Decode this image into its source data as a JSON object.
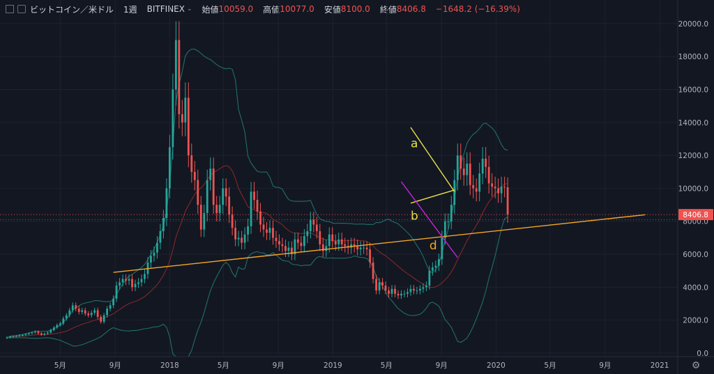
{
  "header": {
    "symbol": "ビットコイン／米ドル",
    "interval": "1週",
    "exchange": "BITFINEX",
    "open_label": "始値",
    "open_value": "10059.0",
    "high_label": "高値",
    "high_value": "10077.0",
    "low_label": "安値",
    "low_value": "8100.0",
    "close_label": "終値",
    "close_value": "8406.8",
    "change": "−1648.2 (−16.39%)"
  },
  "colors": {
    "background": "#131722",
    "up": "#26a69a",
    "down": "#ef5350",
    "bollinger_band": "#1f6f6a",
    "bollinger_mid": "#8b2a2a",
    "trendline_orange": "#f5a623",
    "trendline_yellow": "#e8e24a",
    "trendline_purple": "#c424d6"
  },
  "chart_data": {
    "type": "candlestick",
    "y_axis": {
      "range": [
        0,
        20500
      ],
      "ticks": [
        "0.0",
        "2000.0",
        "4000.0",
        "6000.0",
        "8000.0",
        "10000.0",
        "12000.0",
        "14000.0",
        "16000.0",
        "18000.0",
        "20000.0"
      ]
    },
    "x_axis": {
      "ticks": [
        "5月",
        "9月",
        "2018",
        "5月",
        "9月",
        "2019",
        "5月",
        "9月",
        "2020",
        "5月",
        "9月",
        "2021"
      ]
    },
    "last_price_label": "8406.8",
    "annotations": [
      "a",
      "b",
      "d"
    ],
    "series": [
      {
        "name": "BTCUSD",
        "values": [
          950,
          1000,
          1020,
          1040,
          1080,
          1100,
          1150,
          1200,
          1250,
          1300,
          1200,
          1120,
          1180,
          1250,
          1400,
          1550,
          1700,
          1800,
          2100,
          2300,
          2600,
          2900,
          2700,
          2500,
          2600,
          2400,
          2300,
          2450,
          2600,
          2200,
          1900,
          2300,
          2700,
          2900,
          3300,
          4100,
          4300,
          4500,
          4400,
          4500,
          4000,
          4200,
          4300,
          4500,
          4800,
          5500,
          5900,
          6100,
          6700,
          7400,
          8200,
          10000,
          12500,
          16000,
          19000,
          14500,
          14000,
          15500,
          12000,
          11000,
          10500,
          9000,
          7500,
          8500,
          10500,
          11200,
          9000,
          8500,
          9000,
          10000,
          9500,
          8400,
          7600,
          6900,
          7000,
          6700,
          7200,
          7700,
          9800,
          9300,
          8600,
          7800,
          7500,
          7300,
          7600,
          7000,
          6800,
          6600,
          6500,
          6200,
          6400,
          6000,
          6900,
          6700,
          6500,
          7100,
          7400,
          8100,
          7800,
          7400,
          6600,
          6200,
          6500,
          7200,
          6800,
          6600,
          6900,
          6600,
          6500,
          6400,
          6600,
          6500,
          6300,
          6400,
          6400,
          6300,
          5500,
          4500,
          3800,
          4300,
          4100,
          3800,
          3600,
          3900,
          3600,
          3500,
          3600,
          3600,
          3700,
          3900,
          3800,
          3800,
          3900,
          4000,
          4100,
          5000,
          5200,
          5300,
          5700,
          7000,
          8000,
          8000,
          9000,
          10500,
          12000,
          11200,
          10800,
          11500,
          10200,
          10000,
          9800,
          10900,
          11800,
          11300,
          10300,
          10100,
          10000,
          9700,
          10100,
          10059,
          8406.8
        ]
      }
    ],
    "bands": {
      "period": 20,
      "multiplier": 2
    },
    "trendlines": [
      {
        "label": "orange",
        "from": [
          "2017-08-28",
          4900
        ],
        "to": [
          "2020-11-30",
          8400
        ]
      },
      {
        "label": "a",
        "from": [
          "2019-06-24",
          13700
        ],
        "to": [
          "2019-09-30",
          9800
        ]
      },
      {
        "label": "b",
        "from": [
          "2019-06-24",
          9100
        ],
        "to": [
          "2019-09-30",
          9900
        ]
      },
      {
        "label": "purple",
        "from": [
          "2019-06-03",
          10400
        ],
        "to": [
          "2019-10-07",
          5800
        ]
      }
    ]
  }
}
